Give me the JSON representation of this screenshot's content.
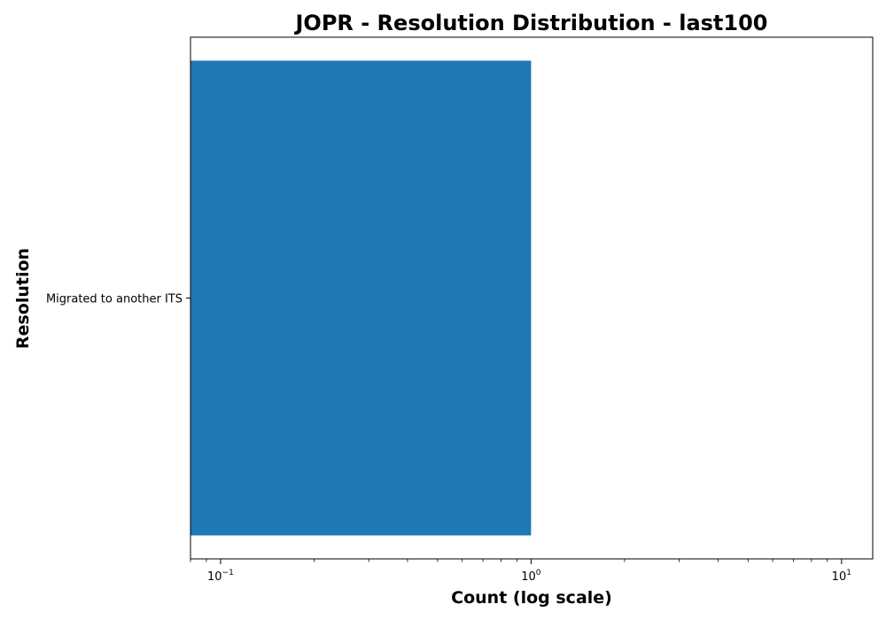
{
  "chart_data": {
    "type": "bar",
    "orientation": "horizontal",
    "title": "JOPR - Resolution Distribution - last100",
    "xlabel": "Count (log scale)",
    "ylabel": "Resolution",
    "xscale": "log",
    "xlim": [
      0.08,
      12.6
    ],
    "categories": [
      "Migrated to another ITS"
    ],
    "values": [
      1
    ],
    "x_ticks": [
      {
        "value": 0.1,
        "base": "10",
        "exp": "−1"
      },
      {
        "value": 1,
        "base": "10",
        "exp": "0"
      },
      {
        "value": 10,
        "base": "10",
        "exp": "1"
      }
    ],
    "grid": false,
    "legend": "none",
    "bar_color": "#1f77b4"
  }
}
